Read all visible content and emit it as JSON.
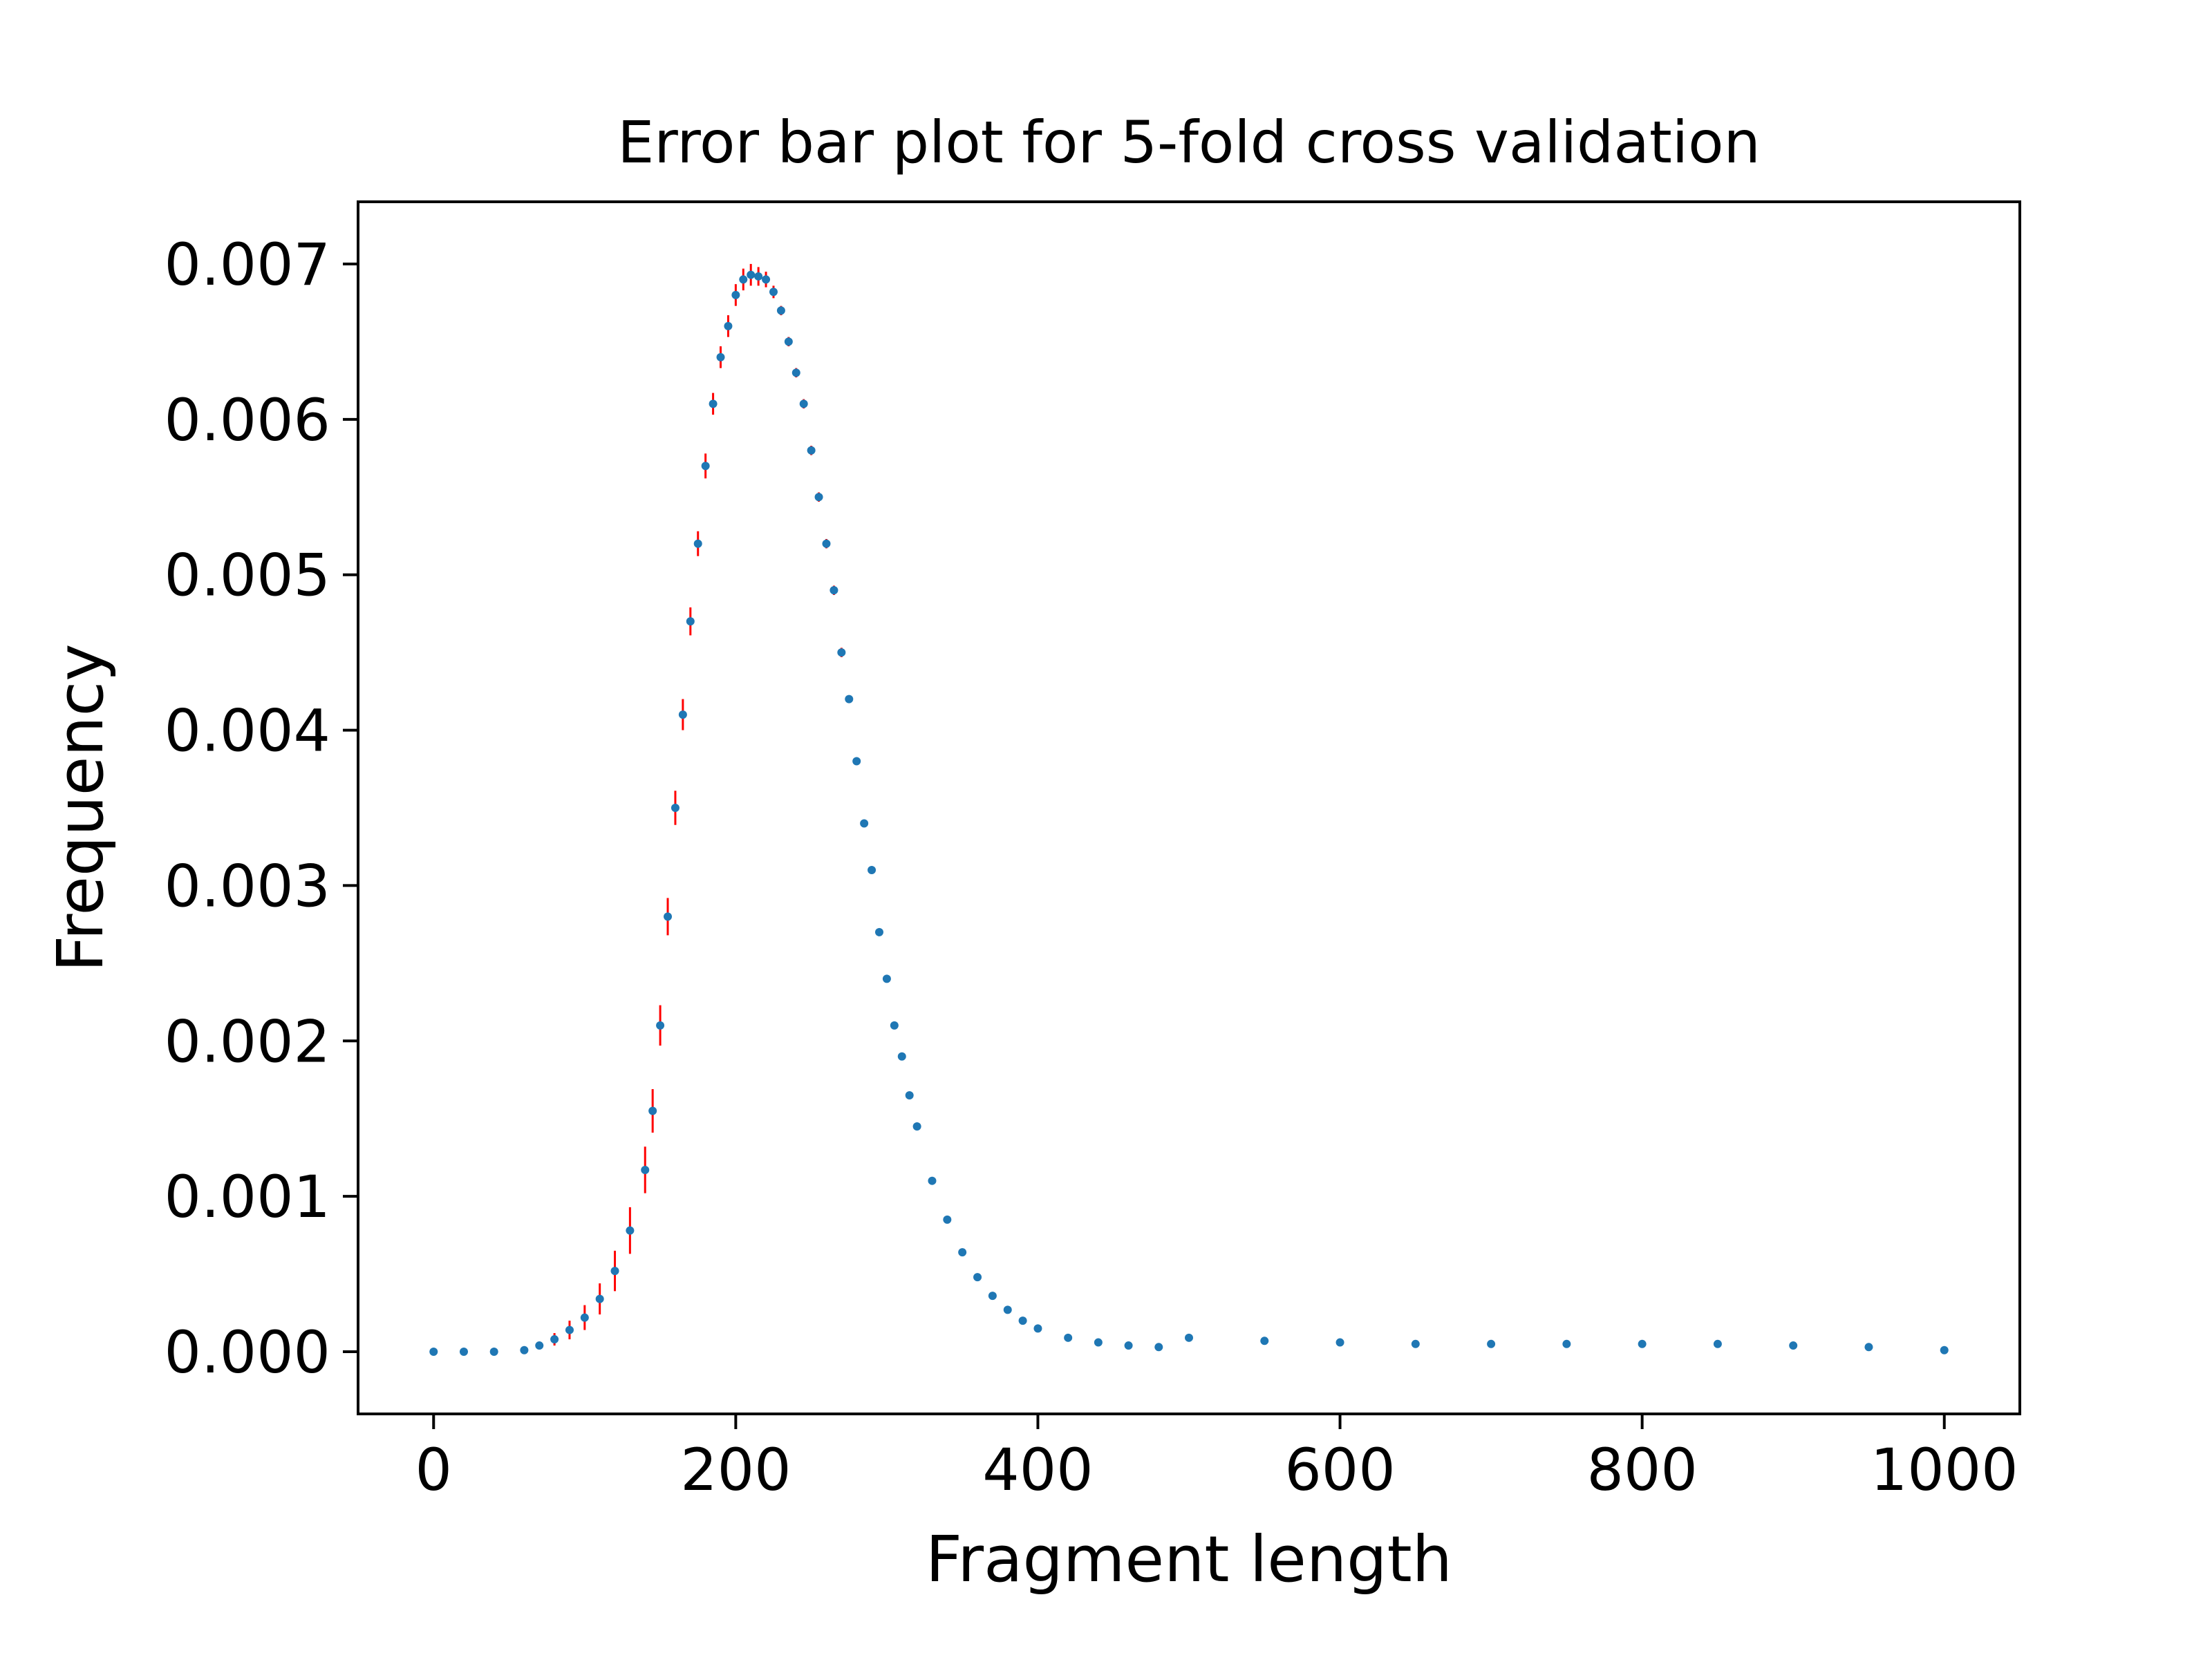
{
  "chart_data": {
    "type": "scatter",
    "title": "Error bar plot for 5-fold cross validation",
    "xlabel": "Fragment length",
    "ylabel": "Frequency",
    "xlim": [
      -50,
      1050
    ],
    "ylim": [
      -0.0004,
      0.0074
    ],
    "xticks": [
      0,
      200,
      400,
      600,
      800,
      1000
    ],
    "xtick_labels": [
      "0",
      "200",
      "400",
      "600",
      "800",
      "1000"
    ],
    "yticks": [
      0.0,
      0.001,
      0.002,
      0.003,
      0.004,
      0.005,
      0.006,
      0.007
    ],
    "ytick_labels": [
      "0.000",
      "0.001",
      "0.002",
      "0.003",
      "0.004",
      "0.005",
      "0.006",
      "0.007"
    ],
    "grid": false,
    "legend": "none",
    "colors": {
      "points": "#1f77b4",
      "error_bars": "#ff0000"
    },
    "series": [
      {
        "x": [
          0,
          20,
          40,
          60,
          70,
          80,
          90,
          100,
          110,
          120,
          130,
          140,
          145,
          150,
          155,
          160,
          165,
          170,
          175,
          180,
          185,
          190,
          195,
          200,
          205,
          210,
          215,
          220,
          225,
          230,
          235,
          240,
          245,
          250,
          255,
          260,
          265,
          270,
          275,
          280,
          285,
          290,
          295,
          300,
          305,
          310,
          315,
          320,
          330,
          340,
          350,
          360,
          370,
          380,
          390,
          400,
          420,
          440,
          460,
          480,
          500,
          550,
          600,
          650,
          700,
          750,
          800,
          850,
          900,
          950,
          1000
        ],
        "y": [
          0.0,
          0.0,
          0.0,
          1e-05,
          4e-05,
          8e-05,
          0.00014,
          0.00022,
          0.00034,
          0.00052,
          0.00078,
          0.00117,
          0.00155,
          0.0021,
          0.0028,
          0.0035,
          0.0041,
          0.0047,
          0.0052,
          0.0057,
          0.0061,
          0.0064,
          0.0066,
          0.0068,
          0.0069,
          0.00693,
          0.00692,
          0.0069,
          0.00682,
          0.0067,
          0.0065,
          0.0063,
          0.0061,
          0.0058,
          0.0055,
          0.0052,
          0.0049,
          0.0045,
          0.0042,
          0.0038,
          0.0034,
          0.0031,
          0.0027,
          0.0024,
          0.0021,
          0.0019,
          0.00165,
          0.00145,
          0.0011,
          0.00085,
          0.00064,
          0.00048,
          0.00036,
          0.00027,
          0.0002,
          0.00015,
          9e-05,
          6e-05,
          4e-05,
          3e-05,
          9e-05,
          7e-05,
          6e-05,
          5e-05,
          5e-05,
          5e-05,
          5e-05,
          5e-05,
          4e-05,
          3e-05,
          1e-05
        ],
        "yerr": [
          0.0,
          0.0,
          0.0,
          1e-05,
          2e-05,
          4e-05,
          6e-05,
          8e-05,
          0.0001,
          0.00013,
          0.00015,
          0.00015,
          0.00014,
          0.00013,
          0.00012,
          0.00011,
          0.0001,
          9e-05,
          8e-05,
          8e-05,
          7e-05,
          7e-05,
          7e-05,
          7e-05,
          7e-05,
          7e-05,
          6e-05,
          5e-05,
          4e-05,
          3e-05,
          3e-05,
          3e-05,
          3e-05,
          3e-05,
          3e-05,
          3e-05,
          3e-05,
          3e-05,
          2e-05,
          2e-05,
          2e-05,
          2e-05,
          2e-05,
          2e-05,
          2e-05,
          2e-05,
          2e-05,
          2e-05,
          2e-05,
          1e-05,
          1e-05,
          1e-05,
          1e-05,
          1e-05,
          1e-05,
          1e-05,
          1e-05,
          0.0,
          0.0,
          0.0,
          0.0,
          0.0,
          0.0,
          0.0,
          0.0,
          0.0,
          0.0,
          0.0,
          0.0,
          0.0,
          0.0
        ]
      }
    ]
  }
}
